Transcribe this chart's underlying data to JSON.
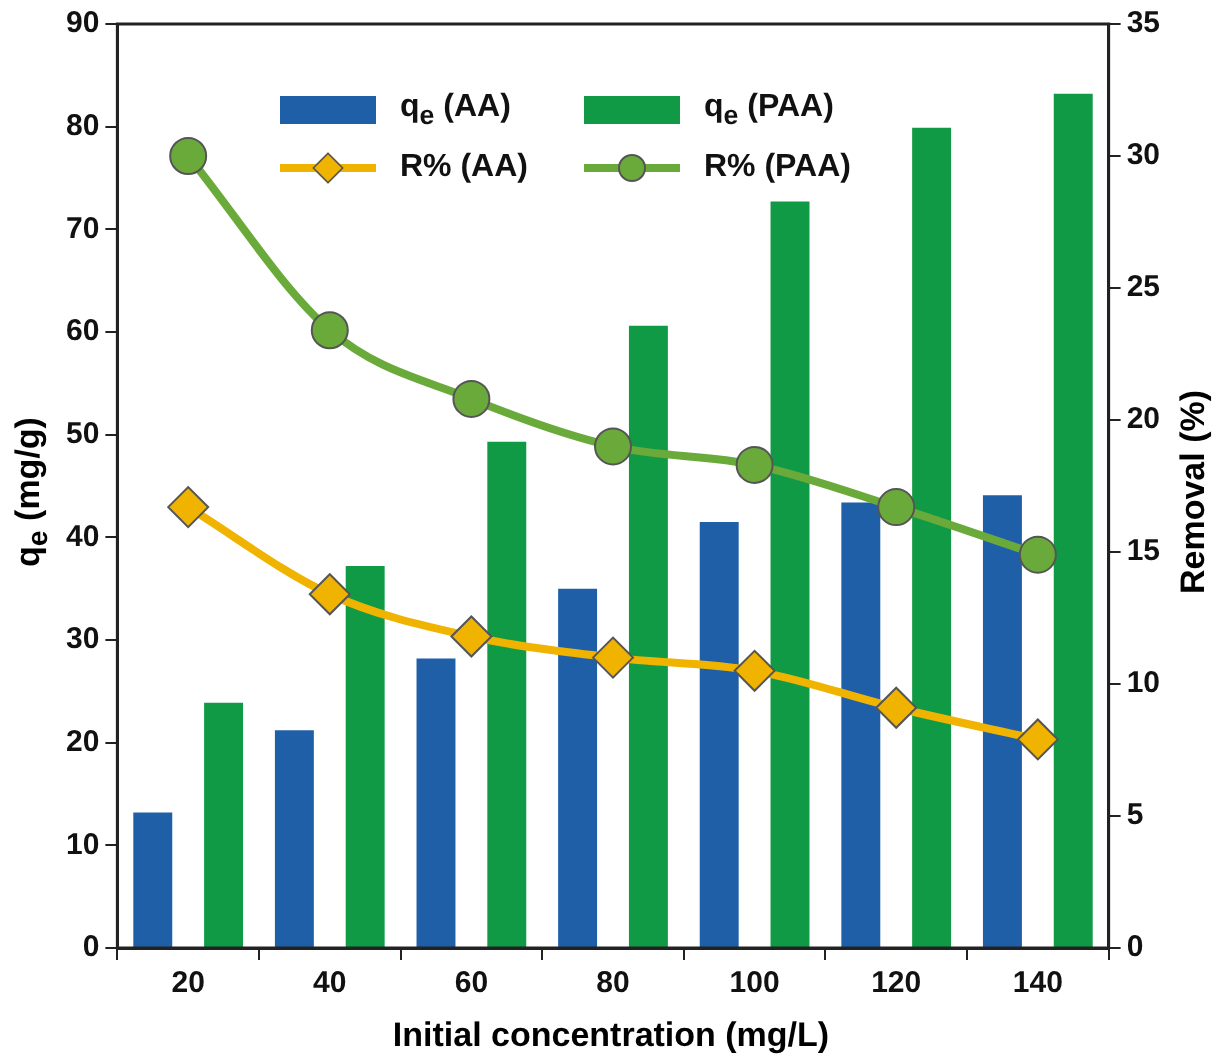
{
  "chart_data": {
    "type": "bar",
    "xlabel": "Initial concentration (mg/L)",
    "ylabel": "q$_{e}$ (mg/g)",
    "y2label": "Removal (%)",
    "categories": [
      "20",
      "40",
      "60",
      "80",
      "100",
      "120",
      "140"
    ],
    "series": [
      {
        "name": "q$_{e}$ (AA)",
        "color": "#1f5fa8",
        "values": [
          13.2,
          21.2,
          28.2,
          35.0,
          41.5,
          43.4,
          44.1
        ]
      },
      {
        "name": "q$_{e}$ (PAA)",
        "color": "#109a45",
        "values": [
          23.9,
          37.2,
          49.3,
          60.6,
          72.7,
          79.9,
          83.2
        ]
      },
      {
        "name": "R% (AA)",
        "type": "line",
        "axis": "y2",
        "color": "#f0b400",
        "marker": "diamond",
        "values": [
          16.7,
          13.4,
          11.8,
          11.0,
          10.5,
          9.1,
          7.9
        ]
      },
      {
        "name": "R% (PAA)",
        "type": "line",
        "axis": "y2",
        "color": "#6aaa3a",
        "marker": "circle",
        "values": [
          30.0,
          23.4,
          20.8,
          19.0,
          18.3,
          16.7,
          14.9
        ]
      }
    ],
    "ylim": [
      0,
      90
    ],
    "yticks": [
      0,
      10,
      20,
      30,
      40,
      50,
      60,
      70,
      80,
      90
    ],
    "y2lim": [
      0,
      35
    ],
    "y2ticks": [
      0,
      5,
      10,
      15,
      20,
      25,
      30,
      35
    ],
    "grid": false,
    "legend": "top"
  }
}
